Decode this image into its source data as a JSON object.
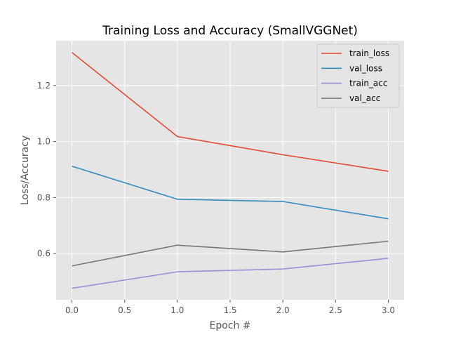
{
  "chart_data": {
    "type": "line",
    "title": "Training Loss and Accuracy (SmallVGGNet)",
    "xlabel": "Epoch #",
    "ylabel": "Loss/Accuracy",
    "xlim": [
      -0.15,
      3.15
    ],
    "ylim": [
      0.435,
      1.36
    ],
    "x": [
      0,
      1,
      2,
      3
    ],
    "x_ticks": [
      0.0,
      0.5,
      1.0,
      1.5,
      2.0,
      2.5,
      3.0
    ],
    "x_tick_labels": [
      "0.0",
      "0.5",
      "1.0",
      "1.5",
      "2.0",
      "2.5",
      "3.0"
    ],
    "y_ticks": [
      0.6,
      0.8,
      1.0,
      1.2
    ],
    "y_tick_labels": [
      "0.6",
      "0.8",
      "1.0",
      "1.2"
    ],
    "grid": true,
    "legend_position": "top-right",
    "series": [
      {
        "name": "train_loss",
        "color": "#e24a33",
        "values": [
          1.318,
          1.018,
          0.953,
          0.894
        ]
      },
      {
        "name": "val_loss",
        "color": "#348abd",
        "values": [
          0.912,
          0.794,
          0.786,
          0.724
        ]
      },
      {
        "name": "train_acc",
        "color": "#988ed5",
        "values": [
          0.476,
          0.535,
          0.545,
          0.583
        ]
      },
      {
        "name": "val_acc",
        "color": "#777777",
        "values": [
          0.556,
          0.63,
          0.606,
          0.644
        ]
      }
    ]
  }
}
